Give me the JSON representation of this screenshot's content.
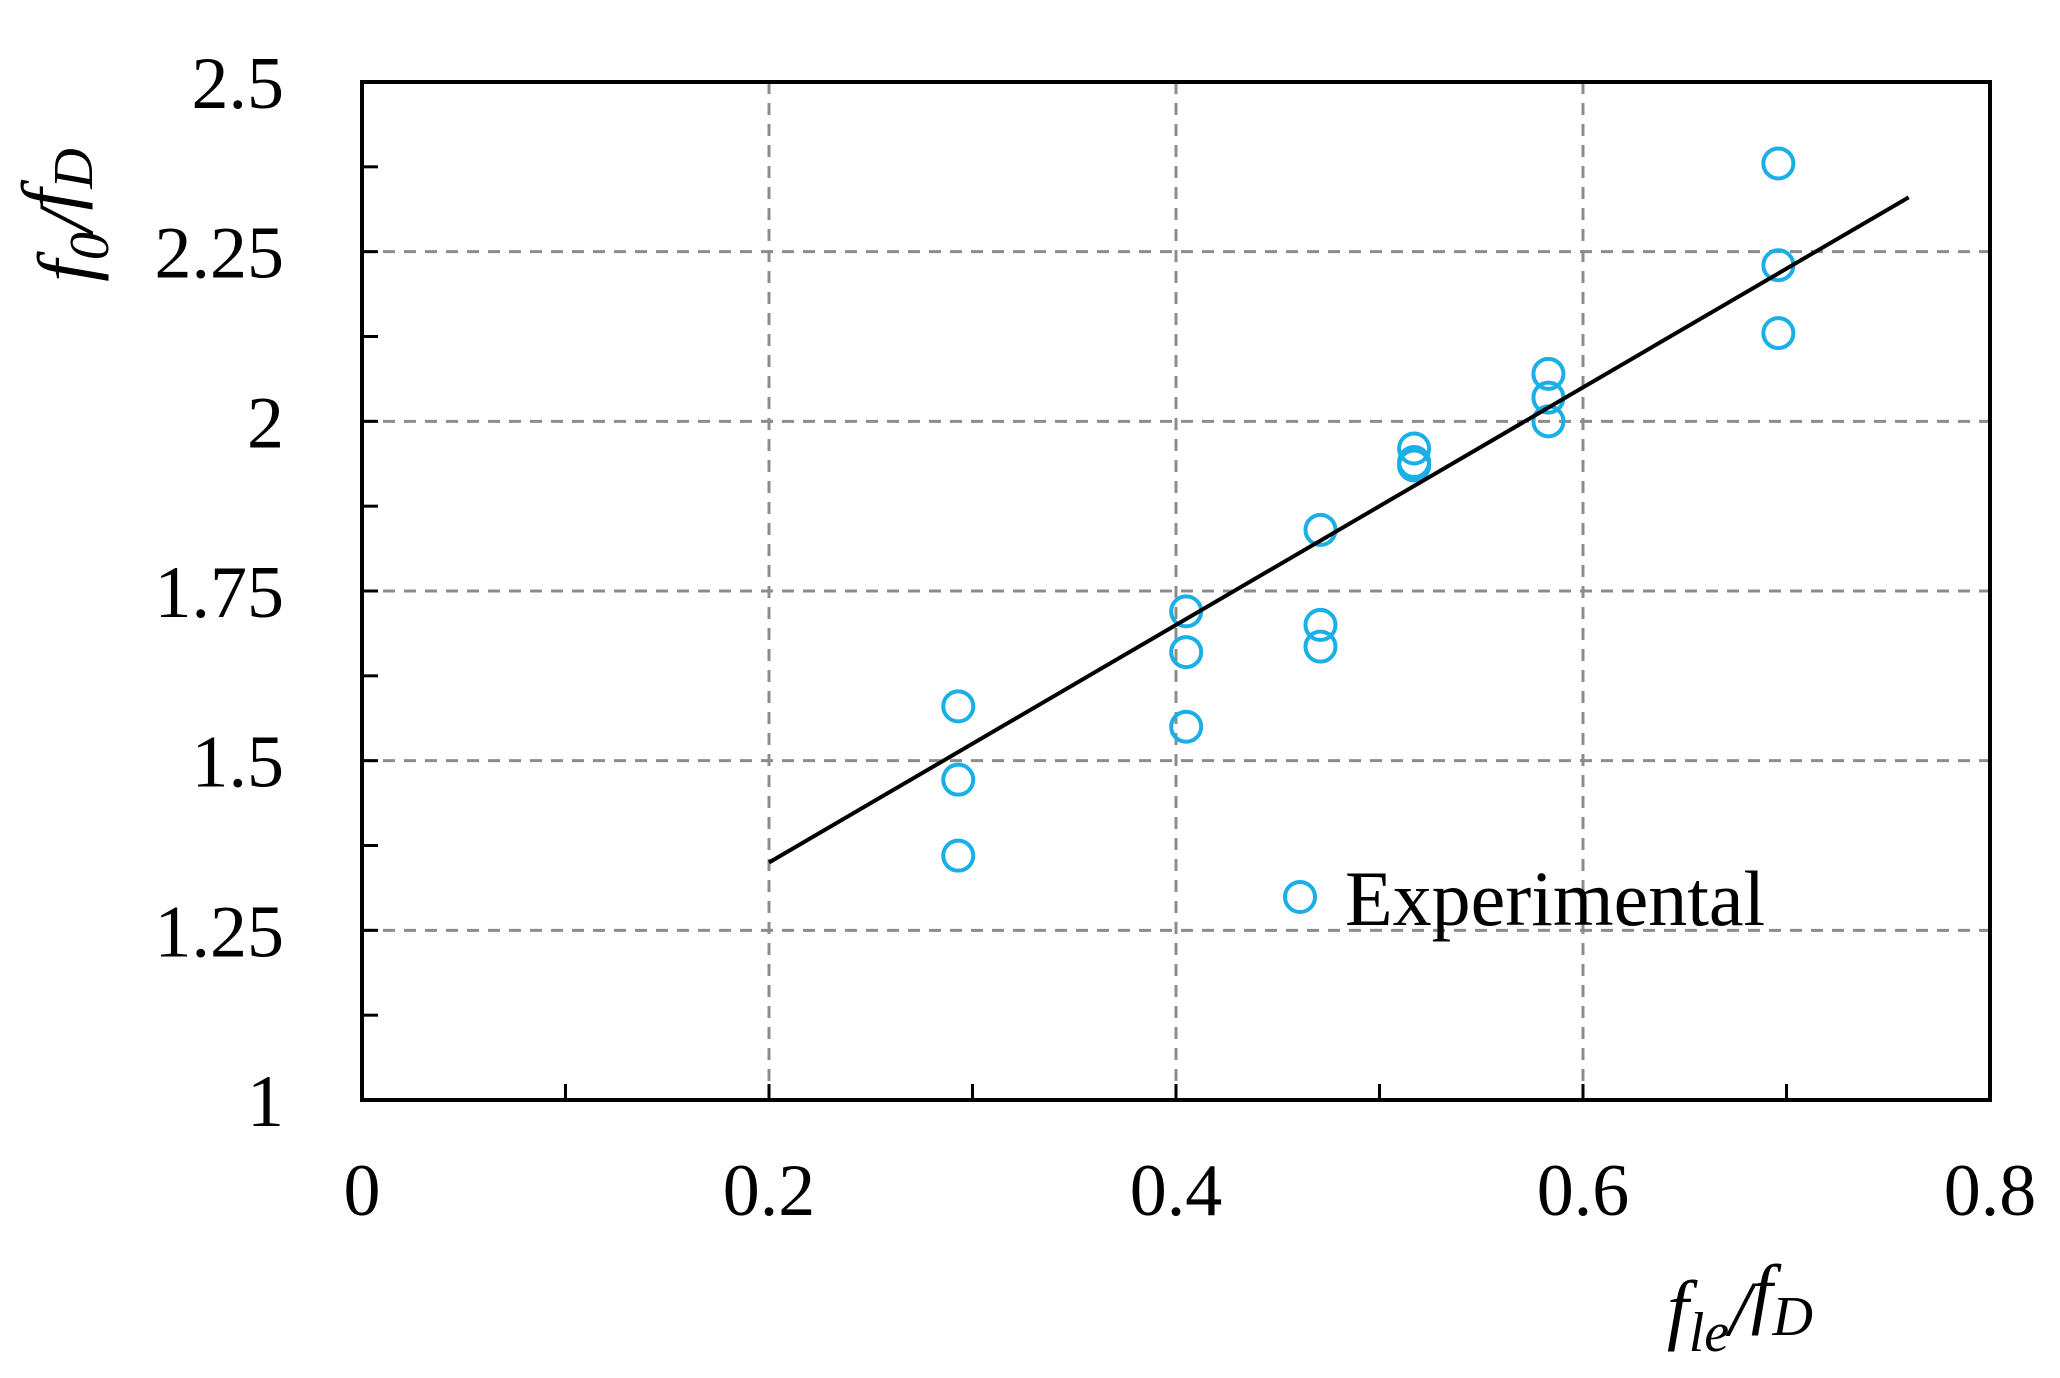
{
  "chart_data": {
    "type": "scatter",
    "xlabel": {
      "base": "f",
      "sub": "le",
      "sep": "/",
      "base2": "f",
      "sub2": "D"
    },
    "ylabel": {
      "base": "f",
      "sub": "0",
      "sep": "/",
      "base2": "f",
      "sub2": "D"
    },
    "xlim": [
      0,
      0.8
    ],
    "ylim": [
      1,
      2.5
    ],
    "xticks": [
      0,
      0.2,
      0.4,
      0.6,
      0.8
    ],
    "xtick_labels": [
      "0",
      "0.2",
      "0.4",
      "0.6",
      "0.8"
    ],
    "xminor_ticks": [
      0.1,
      0.3,
      0.5,
      0.7
    ],
    "yticks": [
      1,
      1.25,
      1.5,
      1.75,
      2,
      2.25,
      2.5
    ],
    "ytick_labels": [
      "1",
      "1.25",
      "1.5",
      "1.75",
      "2",
      "2.25",
      "2.5"
    ],
    "yminor_ticks": [
      1.125,
      1.375,
      1.625,
      1.875,
      2.125,
      2.375
    ],
    "grid": true,
    "legend_position": "bottom-right",
    "series": [
      {
        "name": "Experimental",
        "kind": "scatter",
        "marker": "open-circle",
        "color": "#1AAFE6",
        "points": [
          [
            0.293,
            1.58
          ],
          [
            0.293,
            1.472
          ],
          [
            0.293,
            1.36
          ],
          [
            0.405,
            1.72
          ],
          [
            0.405,
            1.66
          ],
          [
            0.405,
            1.55
          ],
          [
            0.471,
            1.84
          ],
          [
            0.471,
            1.7
          ],
          [
            0.471,
            1.668
          ],
          [
            0.517,
            1.96
          ],
          [
            0.517,
            1.94
          ],
          [
            0.517,
            1.935
          ],
          [
            0.583,
            2.07
          ],
          [
            0.583,
            2.035
          ],
          [
            0.583,
            2.0
          ],
          [
            0.696,
            2.38
          ],
          [
            0.696,
            2.23
          ],
          [
            0.696,
            2.13
          ]
        ]
      },
      {
        "kind": "line",
        "color": "#000000",
        "points": [
          [
            0.2,
            1.35
          ],
          [
            0.76,
            2.33
          ]
        ]
      }
    ]
  },
  "colors": {
    "grid": "#8C8C8C",
    "axis": "#000000",
    "marker": "#1AAFE6"
  }
}
